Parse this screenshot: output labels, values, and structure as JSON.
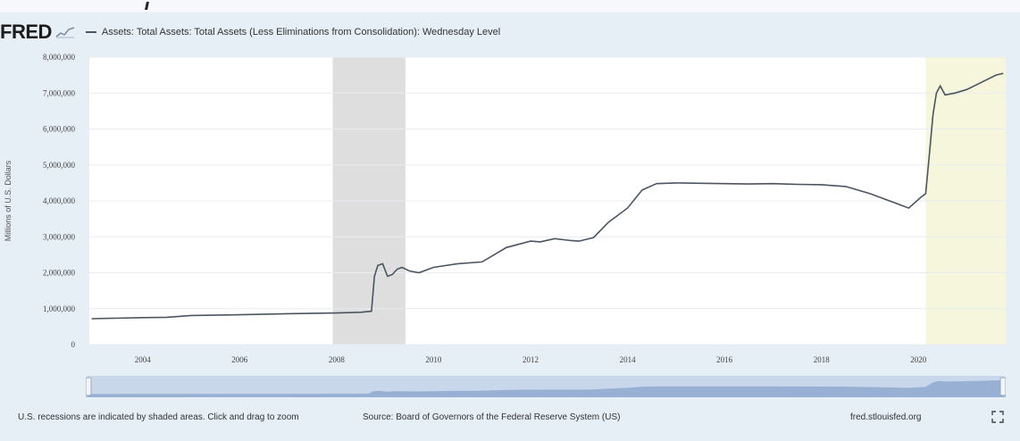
{
  "header": {
    "logo": "FRED",
    "series_title": "Assets: Total Assets: Total Assets (Less Eliminations from Consolidation): Wednesday Level"
  },
  "footer": {
    "notes": "U.S. recessions are indicated by shaded areas. Click and drag to zoom",
    "source": "Source: Board of Governors of the Federal Reserve System (US)",
    "link": "fred.stlouisfed.org"
  },
  "colors": {
    "line": "#4a5560",
    "recession": "#dedede",
    "recent_shade": "#f6f6dc",
    "plot_bg": "#ffffff",
    "page_bg": "#e6eef6",
    "navigator_fill": "#6f8fc0"
  },
  "chart_data": {
    "type": "line",
    "ylabel": "Millions of U.S. Dollars",
    "y_ticks": [
      "0",
      "1,000,000",
      "2,000,000",
      "3,000,000",
      "4,000,000",
      "5,000,000",
      "6,000,000",
      "7,000,000",
      "8,000,000"
    ],
    "y_tick_values": [
      0,
      1000000,
      2000000,
      3000000,
      4000000,
      5000000,
      6000000,
      7000000,
      8000000
    ],
    "ylim": [
      0,
      8000000
    ],
    "x_ticks": [
      "2004",
      "2006",
      "2008",
      "2010",
      "2012",
      "2014",
      "2016",
      "2018",
      "2020"
    ],
    "x_tick_values": [
      2004,
      2006,
      2008,
      2010,
      2012,
      2014,
      2016,
      2018,
      2020
    ],
    "xlim": [
      2002.9,
      2021.8
    ],
    "recessions": [
      [
        2007.92,
        2009.42
      ]
    ],
    "recent_shade": [
      2020.15,
      2021.8
    ],
    "grid": true,
    "series": [
      {
        "x": [
          2002.95,
          2004.0,
          2004.5,
          2005.0,
          2006.0,
          2007.0,
          2008.0,
          2008.5,
          2008.72,
          2008.78,
          2008.85,
          2008.95,
          2009.05,
          2009.15,
          2009.25,
          2009.35,
          2009.5,
          2009.7,
          2010.0,
          2010.5,
          2011.0,
          2011.5,
          2012.0,
          2012.2,
          2012.5,
          2012.8,
          2013.0,
          2013.3,
          2013.6,
          2014.0,
          2014.3,
          2014.6,
          2015.0,
          2015.5,
          2016.0,
          2016.5,
          2017.0,
          2017.5,
          2018.0,
          2018.5,
          2019.0,
          2019.6,
          2019.8,
          2020.05,
          2020.15,
          2020.22,
          2020.3,
          2020.37,
          2020.45,
          2020.55,
          2020.75,
          2021.0,
          2021.3,
          2021.6,
          2021.75
        ],
        "values": [
          720000,
          750000,
          760000,
          810000,
          830000,
          860000,
          880000,
          900000,
          930000,
          1900000,
          2200000,
          2250000,
          1900000,
          1950000,
          2100000,
          2150000,
          2050000,
          2000000,
          2150000,
          2250000,
          2300000,
          2700000,
          2880000,
          2860000,
          2950000,
          2900000,
          2880000,
          2980000,
          3400000,
          3800000,
          4300000,
          4480000,
          4500000,
          4490000,
          4480000,
          4470000,
          4480000,
          4460000,
          4450000,
          4400000,
          4200000,
          3900000,
          3800000,
          4100000,
          4200000,
          5200000,
          6400000,
          7000000,
          7200000,
          6950000,
          7000000,
          7100000,
          7300000,
          7500000,
          7550000
        ]
      }
    ]
  }
}
